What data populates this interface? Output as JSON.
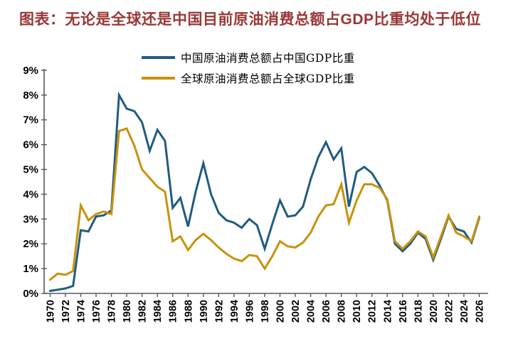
{
  "title": "图表：无论是全球还是中国目前原油消费总额占GDP比重均处于低位",
  "colors": {
    "title": "#993735",
    "china_line": "#1F5C80",
    "global_line": "#C8920B",
    "axis": "#595959",
    "tick_label": "#000000",
    "background": "#FFFFFF"
  },
  "legend": {
    "position": "top",
    "entries": [
      {
        "label": "中国原油消费总额占中国GDP比重",
        "color_key": "china_line"
      },
      {
        "label": "全球原油消费总额占全球GDP比重",
        "color_key": "global_line"
      }
    ]
  },
  "chart_data": {
    "type": "line",
    "title": "",
    "xlabel": "",
    "ylabel": "",
    "grid": false,
    "ylim": [
      0,
      9
    ],
    "ytick_step": 1,
    "ytick_labels": [
      "0%",
      "1%",
      "2%",
      "3%",
      "4%",
      "5%",
      "6%",
      "7%",
      "8%",
      "9%"
    ],
    "xtick_step": 2,
    "xtick_labels": [
      "1970",
      "1972",
      "1974",
      "1976",
      "1978",
      "1980",
      "1982",
      "1984",
      "1986",
      "1988",
      "1990",
      "1992",
      "1994",
      "1996",
      "1998",
      "2000",
      "2002",
      "2004",
      "2006",
      "2008",
      "2010",
      "2012",
      "2014",
      "2016",
      "2018",
      "2020",
      "2022",
      "2024",
      "2026"
    ],
    "x": [
      1970,
      1971,
      1972,
      1973,
      1974,
      1975,
      1976,
      1977,
      1978,
      1979,
      1980,
      1981,
      1982,
      1983,
      1984,
      1985,
      1986,
      1987,
      1988,
      1989,
      1990,
      1991,
      1992,
      1993,
      1994,
      1995,
      1996,
      1997,
      1998,
      1999,
      2000,
      2001,
      2002,
      2003,
      2004,
      2005,
      2006,
      2007,
      2008,
      2009,
      2010,
      2011,
      2012,
      2013,
      2014,
      2015,
      2016,
      2017,
      2018,
      2019,
      2020,
      2021,
      2022,
      2023,
      2024,
      2025,
      2026
    ],
    "unit": "percent",
    "series": [
      {
        "name": "中国原油消费总额占中国GDP比重",
        "color_key": "china_line",
        "values": [
          0.1,
          0.15,
          0.2,
          0.3,
          2.55,
          2.5,
          3.1,
          3.15,
          3.35,
          8.0,
          7.45,
          7.35,
          6.9,
          5.75,
          6.6,
          6.15,
          3.45,
          3.85,
          2.7,
          4.1,
          5.25,
          4.0,
          3.25,
          2.95,
          2.85,
          2.65,
          3.0,
          2.75,
          1.8,
          2.8,
          3.75,
          3.1,
          3.15,
          3.5,
          4.6,
          5.5,
          6.1,
          5.4,
          5.85,
          3.5,
          4.9,
          5.1,
          4.85,
          4.35,
          3.75,
          2.0,
          1.7,
          2.0,
          2.45,
          2.2,
          1.35,
          2.2,
          3.1,
          2.6,
          2.5,
          2.05,
          3.05
        ]
      },
      {
        "name": "全球原油消费总额占全球GDP比重",
        "color_key": "global_line",
        "values": [
          0.55,
          0.8,
          0.75,
          0.9,
          3.55,
          2.95,
          3.2,
          3.3,
          3.2,
          6.55,
          6.65,
          5.95,
          5.0,
          4.65,
          4.3,
          4.1,
          2.1,
          2.3,
          1.75,
          2.15,
          2.4,
          2.15,
          1.85,
          1.6,
          1.4,
          1.3,
          1.55,
          1.5,
          1.0,
          1.5,
          2.1,
          1.9,
          1.85,
          2.05,
          2.45,
          3.1,
          3.55,
          3.6,
          4.4,
          2.85,
          3.75,
          4.4,
          4.4,
          4.25,
          3.8,
          2.1,
          1.8,
          2.1,
          2.5,
          2.3,
          1.45,
          2.3,
          3.15,
          2.45,
          2.3,
          2.1,
          3.1
        ]
      }
    ]
  }
}
